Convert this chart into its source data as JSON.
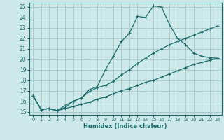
{
  "xlabel": "Humidex (Indice chaleur)",
  "bg_color": "#cde8e8",
  "grid_color": "#aacccc",
  "line_color": "#1a6b6b",
  "xlim": [
    -0.5,
    23.5
  ],
  "ylim": [
    14.7,
    25.4
  ],
  "xticks": [
    0,
    1,
    2,
    3,
    4,
    5,
    6,
    7,
    8,
    9,
    10,
    11,
    12,
    13,
    14,
    15,
    16,
    17,
    18,
    19,
    20,
    21,
    22,
    23
  ],
  "yticks": [
    15,
    16,
    17,
    18,
    19,
    20,
    21,
    22,
    23,
    24,
    25
  ],
  "line1_x": [
    0,
    1,
    2,
    3,
    4,
    5,
    6,
    7,
    8,
    9,
    10,
    11,
    12,
    13,
    14,
    15,
    16,
    17,
    18,
    19,
    20,
    21,
    22,
    23
  ],
  "line1_y": [
    16.5,
    15.2,
    15.3,
    15.1,
    15.4,
    16.0,
    16.3,
    17.1,
    17.4,
    19.0,
    20.3,
    21.7,
    22.5,
    24.1,
    24.0,
    25.1,
    25.0,
    23.3,
    22.0,
    21.4,
    20.6,
    20.3,
    20.15,
    20.1
  ],
  "line2_x": [
    0,
    1,
    2,
    3,
    4,
    5,
    6,
    7,
    8,
    9,
    10,
    11,
    12,
    13,
    14,
    15,
    16,
    17,
    18,
    19,
    20,
    21,
    22,
    23
  ],
  "line2_y": [
    16.5,
    15.2,
    15.3,
    15.1,
    15.6,
    16.0,
    16.3,
    16.9,
    17.3,
    17.5,
    17.9,
    18.5,
    19.0,
    19.6,
    20.1,
    20.6,
    21.0,
    21.4,
    21.7,
    22.0,
    22.3,
    22.6,
    22.9,
    23.2
  ],
  "line3_x": [
    0,
    1,
    2,
    3,
    4,
    5,
    6,
    7,
    8,
    9,
    10,
    11,
    12,
    13,
    14,
    15,
    16,
    17,
    18,
    19,
    20,
    21,
    22,
    23
  ],
  "line3_y": [
    16.5,
    15.2,
    15.3,
    15.1,
    15.3,
    15.5,
    15.7,
    15.9,
    16.2,
    16.4,
    16.7,
    17.0,
    17.2,
    17.5,
    17.8,
    18.0,
    18.3,
    18.6,
    18.9,
    19.2,
    19.5,
    19.7,
    19.9,
    20.1
  ]
}
